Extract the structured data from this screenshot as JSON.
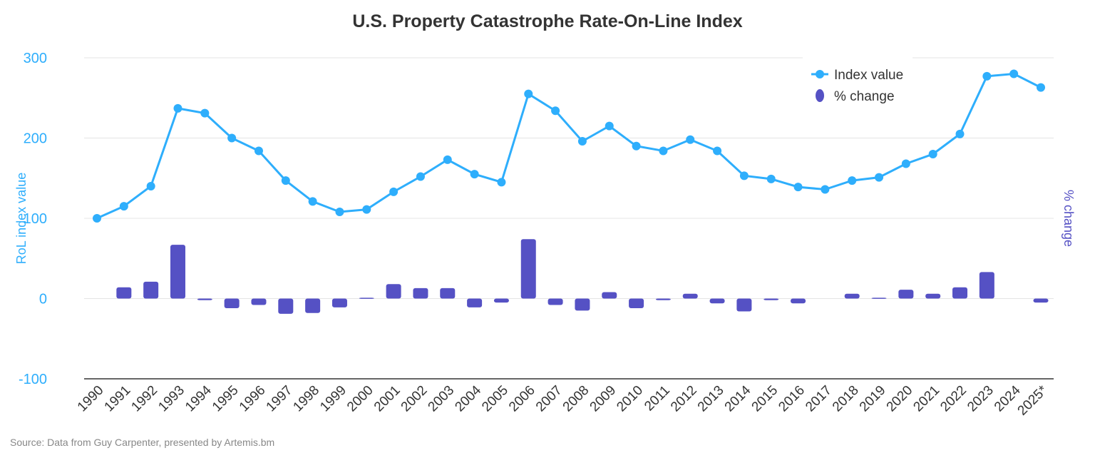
{
  "chart_data": {
    "type": "bar+line",
    "title": "U.S. Property Catastrophe Rate-On-Line Index",
    "ylabel": "RoL index value",
    "y2label": "% change",
    "ylim": [
      -100,
      300
    ],
    "yticks": [
      "300",
      "200",
      "100",
      "0",
      "-100"
    ],
    "grid": true,
    "legend_position": "top-right",
    "categories": [
      "1990",
      "1991",
      "1992",
      "1993",
      "1994",
      "1995",
      "1996",
      "1997",
      "1998",
      "1999",
      "2000",
      "2001",
      "2002",
      "2003",
      "2004",
      "2005",
      "2006",
      "2007",
      "2008",
      "2009",
      "2010",
      "2011",
      "2012",
      "2013",
      "2014",
      "2015",
      "2016",
      "2017",
      "2018",
      "2019",
      "2020",
      "2021",
      "2022",
      "2023",
      "2024",
      "2025*"
    ],
    "series": [
      {
        "name": "Index value",
        "type": "line",
        "color": "#2eaefc",
        "values": [
          100,
          115,
          140,
          237,
          231,
          200,
          184,
          147,
          121,
          108,
          111,
          133,
          152,
          173,
          155,
          145,
          255,
          234,
          196,
          215,
          190,
          184,
          198,
          184,
          153,
          149,
          139,
          136,
          147,
          151,
          168,
          180,
          205,
          277,
          280,
          263
        ]
      },
      {
        "name": "% change",
        "type": "bar",
        "color": "#5551c4",
        "values": [
          0,
          14,
          21,
          67,
          -2,
          -12,
          -8,
          -19,
          -18,
          -11,
          1,
          18,
          13,
          13,
          -11,
          -5,
          74,
          -8,
          -15,
          8,
          -12,
          -2,
          6,
          -6,
          -16,
          -2,
          -6,
          0,
          6,
          1,
          11,
          6,
          14,
          33,
          0,
          -5
        ]
      }
    ]
  },
  "source": "Source: Data from Guy Carpenter, presented by Artemis.bm"
}
